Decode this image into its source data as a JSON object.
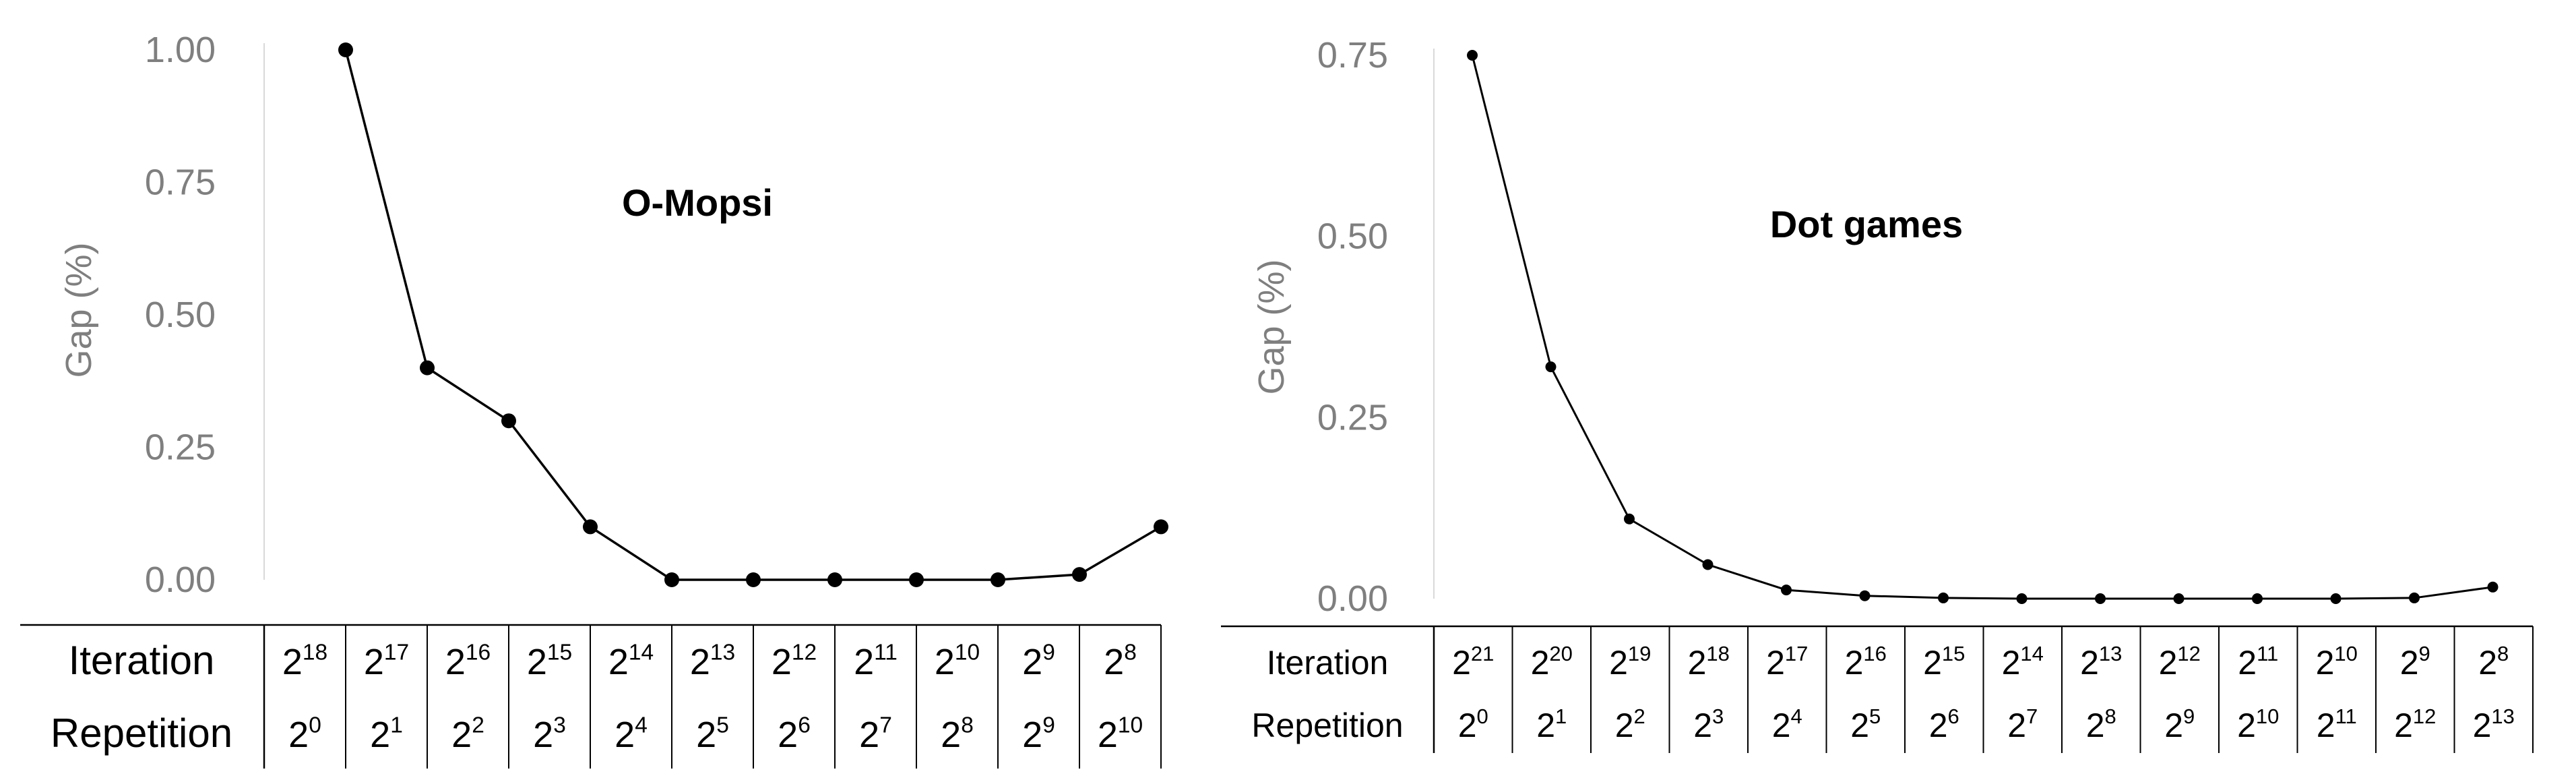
{
  "chart_data": [
    {
      "type": "line",
      "title": "O-Mopsi",
      "ylabel": "Gap (%)",
      "ylim": [
        0,
        1
      ],
      "yticks": [
        "0.00",
        "0.25",
        "0.50",
        "0.75",
        "1.00"
      ],
      "grid": false,
      "row_labels": [
        "Iteration",
        "Repetition"
      ],
      "iteration_exponents": [
        18,
        17,
        16,
        15,
        14,
        13,
        12,
        11,
        10,
        9,
        8
      ],
      "repetition_exponents": [
        0,
        1,
        2,
        3,
        4,
        5,
        6,
        7,
        8,
        9,
        10
      ],
      "base": "2",
      "values": [
        1.0,
        0.4,
        0.3,
        0.1,
        0.0,
        0.0,
        0.0,
        0.0,
        0.0,
        0.01,
        0.1
      ]
    },
    {
      "type": "line",
      "title": "Dot games",
      "ylabel": "Gap (%)",
      "ylim": [
        0,
        0.75
      ],
      "yticks": [
        "0.00",
        "0.25",
        "0.50",
        "0.75"
      ],
      "grid": false,
      "row_labels": [
        "Iteration",
        "Repetition"
      ],
      "iteration_exponents": [
        21,
        20,
        19,
        18,
        17,
        16,
        15,
        14,
        13,
        12,
        11,
        10,
        9,
        8
      ],
      "repetition_exponents": [
        0,
        1,
        2,
        3,
        4,
        5,
        6,
        7,
        8,
        9,
        10,
        11,
        12,
        13
      ],
      "base": "2",
      "values": [
        0.75,
        0.32,
        0.11,
        0.047,
        0.012,
        0.004,
        0.001,
        0.0,
        0.0,
        0.0,
        0.0,
        0.0,
        0.001,
        0.016
      ]
    }
  ],
  "colors": {
    "line": "#000000",
    "axis_text": "#7f7f7f",
    "axis_line": "#d9d9d9"
  }
}
